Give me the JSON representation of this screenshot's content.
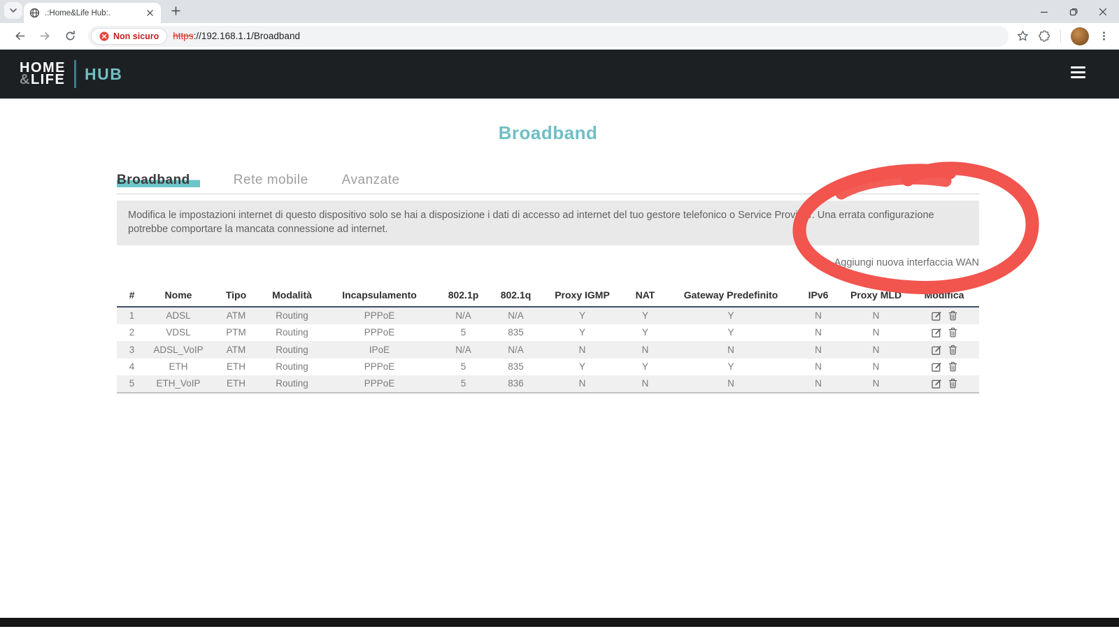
{
  "colors": {
    "accent_teal": "#6fc0c5",
    "tab_highlight_teal": "#6cc5c9",
    "site_header_bg": "#1d2023",
    "annotation_red": "#f2544e",
    "security_red": "#c5221f",
    "table_header_rule": "#3f4e68"
  },
  "browser": {
    "tab": {
      "title": ".:Home&Life Hub:."
    },
    "address": {
      "badge": "Non sicuro",
      "scheme": "https",
      "rest": "://192.168.1.1/Broadband"
    }
  },
  "site_header": {
    "logo_home": "HOME",
    "logo_amp": "&",
    "logo_life": "LIFE",
    "logo_hub": "HUB"
  },
  "main": {
    "title": "Broadband",
    "tabs": [
      {
        "label": "Broadband",
        "active": true
      },
      {
        "label": "Rete mobile",
        "active": false
      },
      {
        "label": "Avanzate",
        "active": false
      }
    ],
    "notice": "Modifica le impostazioni internet di questo dispositivo solo se hai a disposizione i dati di accesso ad internet del tuo gestore telefonico o Service Provider. Una errata configurazione potrebbe comportare la mancata connessione ad internet.",
    "add_wan_link": "Aggiungi nuova interfaccia WAN"
  },
  "table": {
    "headers": [
      "#",
      "Nome",
      "Tipo",
      "Modalità",
      "Incapsulamento",
      "802.1p",
      "802.1q",
      "Proxy IGMP",
      "NAT",
      "Gateway Predefinito",
      "IPv6",
      "Proxy MLD",
      "Modifica"
    ],
    "rows": [
      [
        "1",
        "ADSL",
        "ATM",
        "Routing",
        "PPPoE",
        "N/A",
        "N/A",
        "Y",
        "Y",
        "Y",
        "N",
        "N"
      ],
      [
        "2",
        "VDSL",
        "PTM",
        "Routing",
        "PPPoE",
        "5",
        "835",
        "Y",
        "Y",
        "Y",
        "N",
        "N"
      ],
      [
        "3",
        "ADSL_VoIP",
        "ATM",
        "Routing",
        "IPoE",
        "N/A",
        "N/A",
        "N",
        "N",
        "N",
        "N",
        "N"
      ],
      [
        "4",
        "ETH",
        "ETH",
        "Routing",
        "PPPoE",
        "5",
        "835",
        "Y",
        "Y",
        "Y",
        "N",
        "N"
      ],
      [
        "5",
        "ETH_VoIP",
        "ETH",
        "Routing",
        "PPPoE",
        "5",
        "836",
        "N",
        "N",
        "N",
        "N",
        "N"
      ]
    ]
  },
  "annotation": {
    "shape": "hand-drawn-circle",
    "color": "#f2544e",
    "circles": "Aggiungi nuova interfaccia WAN"
  }
}
